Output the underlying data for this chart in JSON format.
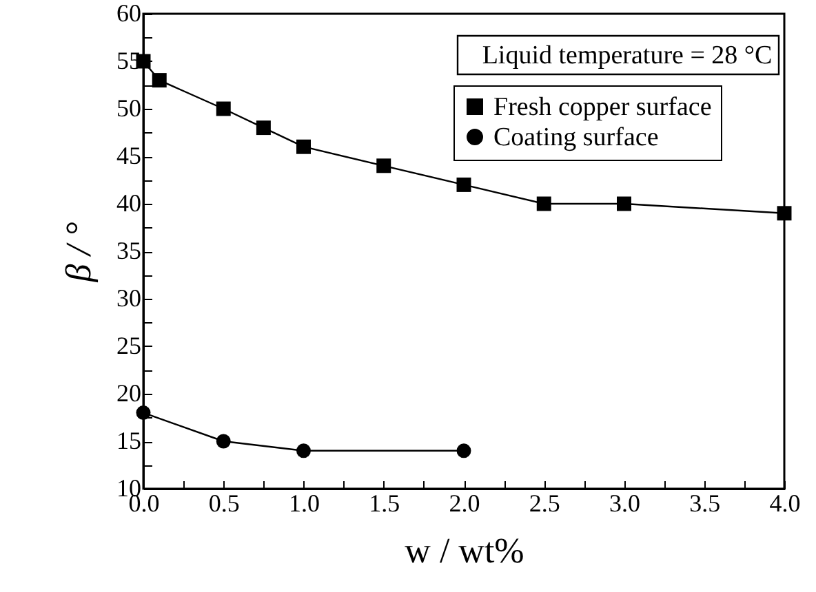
{
  "chart_data": {
    "type": "line",
    "xlabel": "w / wt%",
    "ylabel": "β / °",
    "annotations": [
      "Liquid temperature = 28 °C"
    ],
    "xlim": [
      0,
      4
    ],
    "ylim": [
      10,
      60
    ],
    "xticks": [
      {
        "value": 0,
        "label": "0.0"
      },
      {
        "value": 0.25,
        "label": null
      },
      {
        "value": 0.5,
        "label": "0.5"
      },
      {
        "value": 0.75,
        "label": null
      },
      {
        "value": 1,
        "label": "1.0"
      },
      {
        "value": 1.25,
        "label": null
      },
      {
        "value": 1.5,
        "label": "1.5"
      },
      {
        "value": 1.75,
        "label": null
      },
      {
        "value": 2,
        "label": "2.0"
      },
      {
        "value": 2.25,
        "label": null
      },
      {
        "value": 2.5,
        "label": "2.5"
      },
      {
        "value": 2.75,
        "label": null
      },
      {
        "value": 3,
        "label": "3.0"
      },
      {
        "value": 3.25,
        "label": null
      },
      {
        "value": 3.5,
        "label": "3.5"
      },
      {
        "value": 3.75,
        "label": null
      },
      {
        "value": 4,
        "label": "4.0"
      }
    ],
    "yticks": [
      10,
      {
        "value": 12.5,
        "label": null
      },
      15,
      {
        "value": 17.5,
        "label": null
      },
      20,
      {
        "value": 22.5,
        "label": null
      },
      25,
      {
        "value": 27.5,
        "label": null
      },
      30,
      {
        "value": 32.5,
        "label": null
      },
      35,
      {
        "value": 37.5,
        "label": null
      },
      40,
      {
        "value": 42.5,
        "label": null
      },
      45,
      {
        "value": 47.5,
        "label": null
      },
      50,
      {
        "value": 52.5,
        "label": null
      },
      55,
      {
        "value": 57.5,
        "label": null
      },
      60
    ],
    "grid": false,
    "legend": "top right",
    "line_style": "solid",
    "series": [
      {
        "name": "Fresh copper surface",
        "color": "#000000",
        "marker": "square",
        "x": [
          0,
          0.1,
          0.5,
          0.75,
          1,
          1.5,
          2,
          2.5,
          3,
          4
        ],
        "values": [
          55,
          53,
          50,
          48,
          46,
          44,
          42,
          40,
          40,
          39
        ]
      },
      {
        "name": "Coating surface",
        "color": "#000000",
        "marker": "circle",
        "x": [
          0,
          0.5,
          1,
          2
        ],
        "values": [
          18,
          15,
          14,
          14
        ]
      }
    ]
  }
}
